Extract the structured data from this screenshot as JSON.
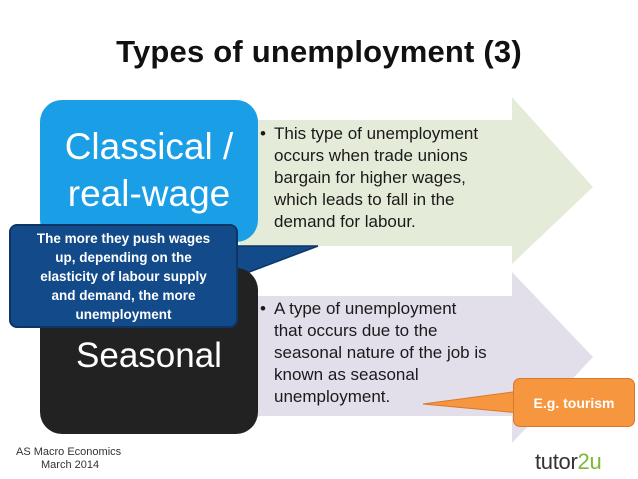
{
  "title": "Types of unemployment (3)",
  "classical": {
    "label_line1": "Classical /",
    "label_line2": "real-wage",
    "bullet": "•",
    "text_lines": [
      "This type of unemployment",
      "occurs when trade unions",
      "bargain for higher wages,",
      "which leads to fall in the",
      "demand for labour."
    ],
    "color": "#1a9ee6",
    "arrow_color": "#e4ecd9"
  },
  "seasonal": {
    "label": "Seasonal",
    "bullet": "•",
    "text_lines": [
      "A type of unemployment",
      "that occurs due to the",
      "seasonal nature of the job is",
      "known as seasonal",
      "unemployment."
    ],
    "color": "#222222",
    "arrow_color": "#e2dfeb"
  },
  "callout_blue": {
    "lines": [
      "The more they push wages",
      "up, depending on the",
      "elasticity of labour supply",
      "and demand, the more",
      "unemployment"
    ],
    "color": "#124a8a"
  },
  "callout_orange": {
    "text": "E.g. tourism",
    "color": "#f6963f"
  },
  "footer": {
    "line1": "AS Macro Economics",
    "line2": "March 2014"
  },
  "logo": {
    "part1": "tutor",
    "part2": "2u"
  }
}
